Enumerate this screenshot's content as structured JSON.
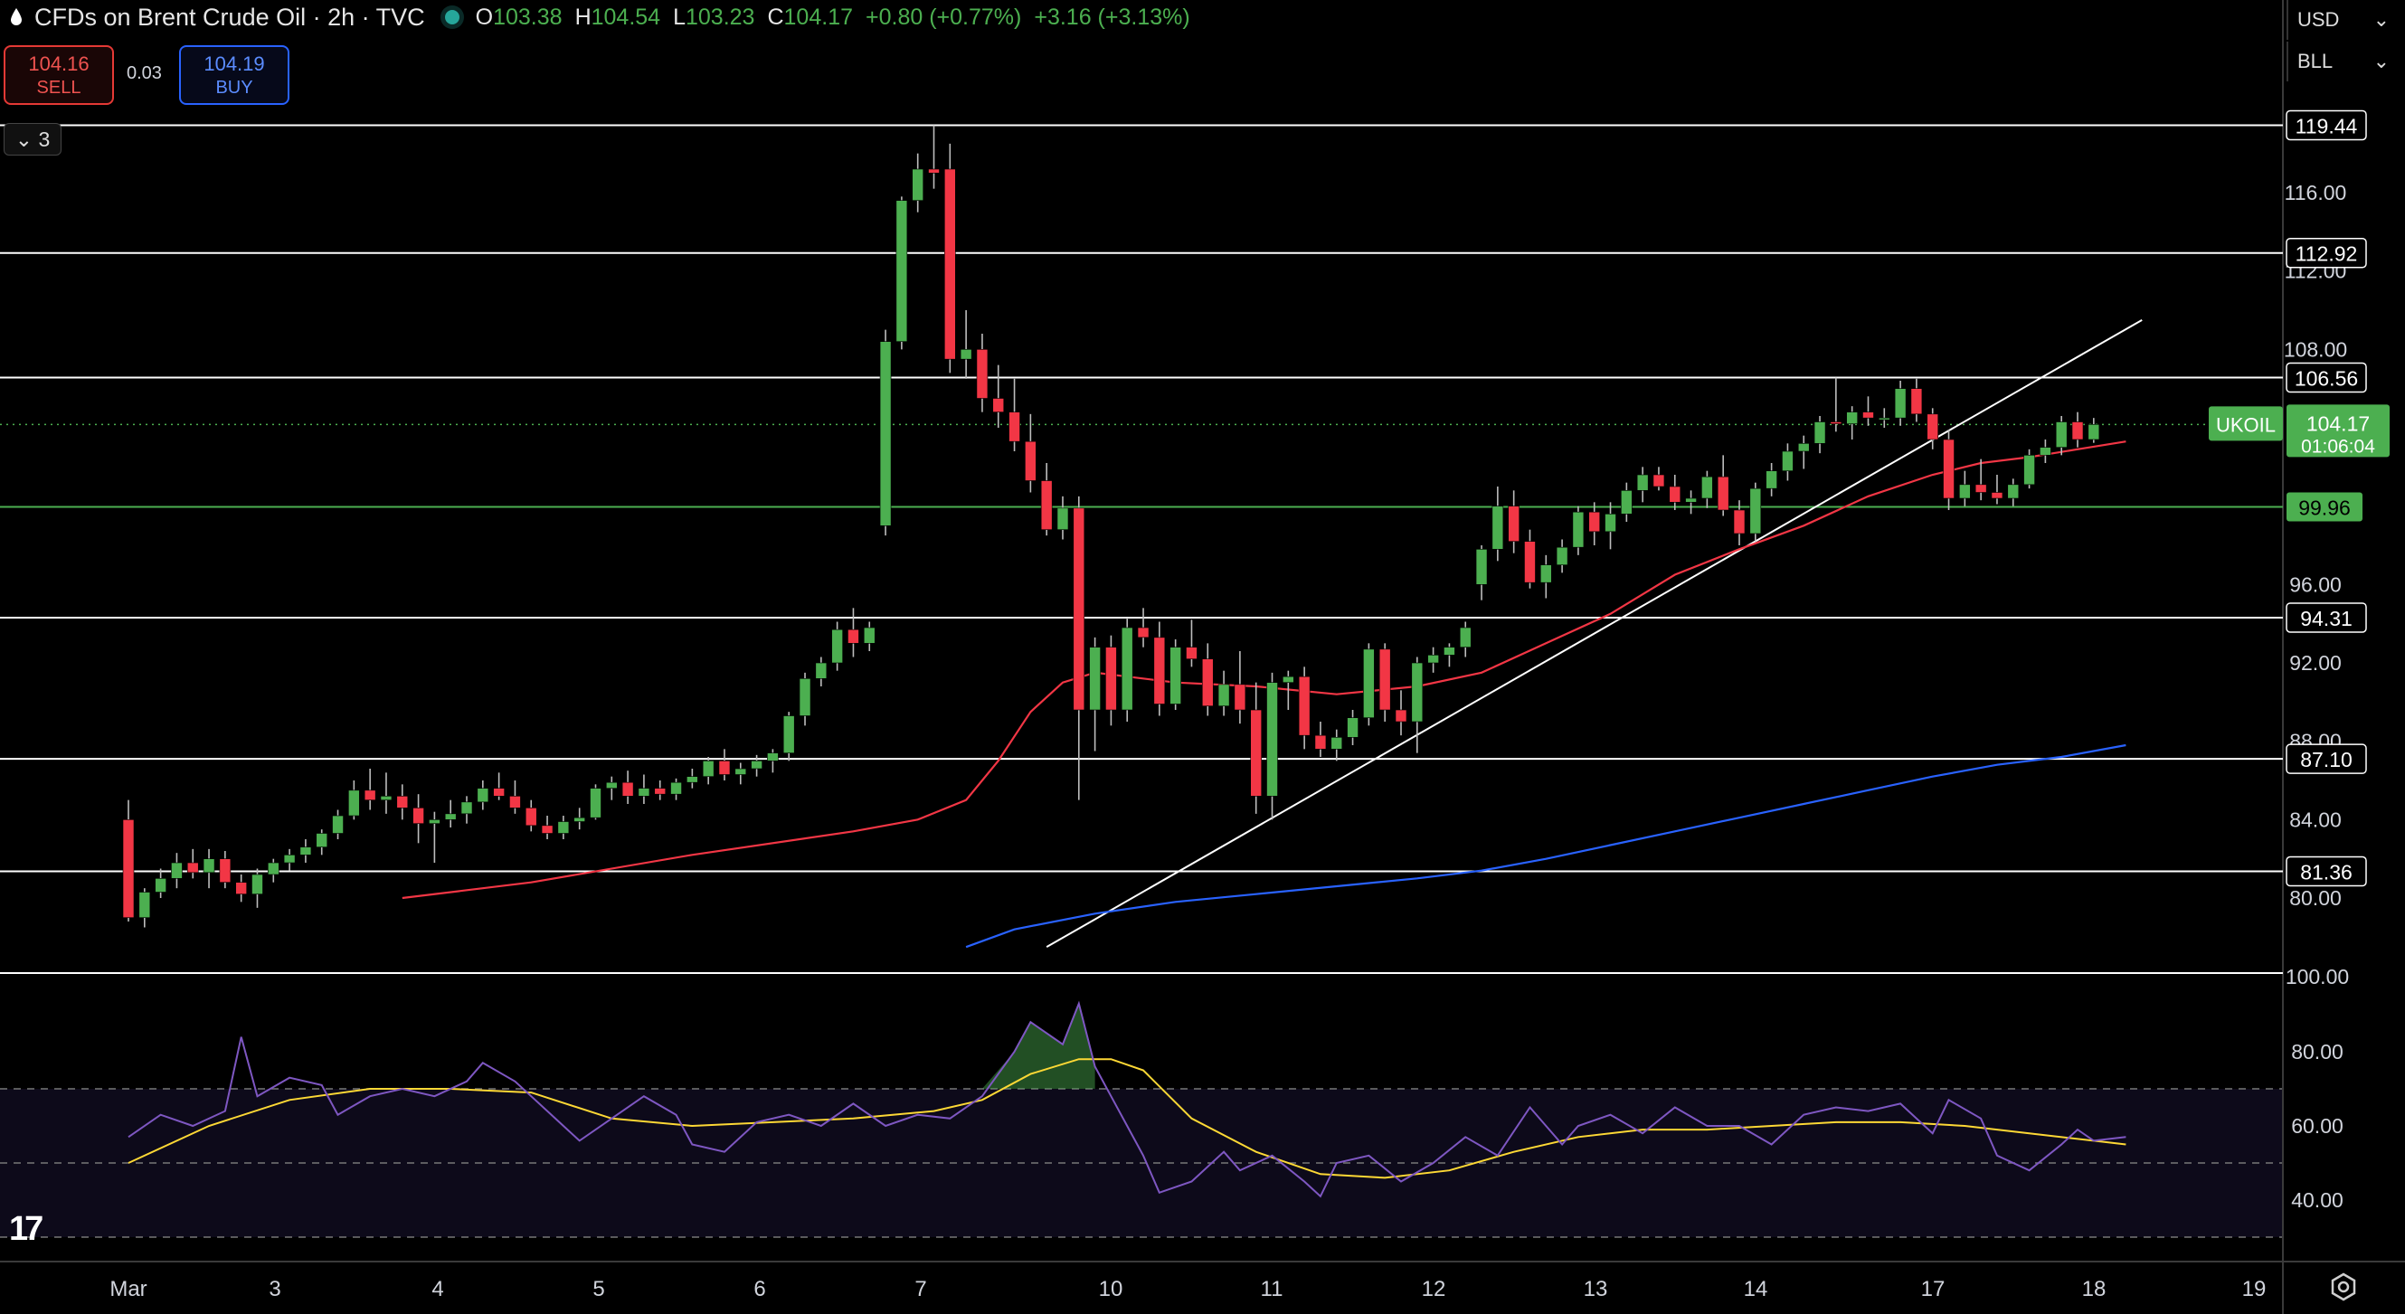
{
  "header": {
    "title": "CFDs on Brent Crude Oil · 2h · TVC",
    "open_label": "O",
    "open": "103.38",
    "high_label": "H",
    "high": "104.54",
    "low_label": "L",
    "low": "103.23",
    "close_label": "C",
    "close": "104.17",
    "change": "+0.80 (+0.77%)",
    "change2": "+3.16 (+3.13%)"
  },
  "trade": {
    "sell_price": "104.16",
    "sell_label": "SELL",
    "spread": "0.03",
    "buy_price": "104.19",
    "buy_label": "BUY"
  },
  "indicators_toggle": "3",
  "currency": "USD",
  "unit": "BLL",
  "symbol": {
    "name": "UKOIL",
    "price": "104.17",
    "countdown": "01:06:04"
  },
  "colors": {
    "up": "#4caf50",
    "down": "#f23645",
    "ma_fast": "#f23645",
    "ma_slow": "#2962ff",
    "rsi": "#7e57c2",
    "rsi_ma": "#fdd835",
    "level": "#ffffff",
    "accent": "#26a69a"
  },
  "chart_data": {
    "type": "candlestick",
    "price_ticks": [
      "116.00",
      "112.00",
      "108.00",
      "96.00",
      "92.00",
      "88.00",
      "84.00",
      "80.00"
    ],
    "price_ticks_values": [
      116,
      112,
      108,
      96,
      92,
      88,
      84,
      80
    ],
    "levels": [
      "119.44",
      "112.92",
      "106.56",
      "94.31",
      "87.10",
      "81.36"
    ],
    "levels_values": [
      119.44,
      112.92,
      106.56,
      94.31,
      87.1,
      81.36
    ],
    "support_line": "99.96",
    "support_line_value": 99.96,
    "last_price": 104.17,
    "x_labels": [
      "Mar",
      "3",
      "4",
      "5",
      "6",
      "7",
      "10",
      "11",
      "12",
      "13",
      "14",
      "17",
      "18",
      "19"
    ],
    "rsi_ticks": [
      "80.00",
      "60.00",
      "40.00"
    ],
    "rsi_ticks_values": [
      80,
      60,
      40
    ],
    "rsi_pane_top_label": "100.00",
    "rsi_bands": [
      70,
      50,
      30
    ],
    "candles": [
      [
        84.0,
        85.0,
        78.8,
        79.0
      ],
      [
        79.0,
        80.5,
        78.5,
        80.3
      ],
      [
        80.3,
        81.5,
        80.0,
        81.0
      ],
      [
        81.0,
        82.3,
        80.5,
        81.8
      ],
      [
        81.8,
        82.5,
        81.0,
        81.3
      ],
      [
        81.3,
        82.5,
        80.5,
        82.0
      ],
      [
        82.0,
        82.4,
        80.5,
        80.8
      ],
      [
        80.8,
        81.2,
        79.8,
        80.2
      ],
      [
        80.2,
        81.5,
        79.5,
        81.2
      ],
      [
        81.2,
        82.0,
        80.8,
        81.8
      ],
      [
        81.8,
        82.5,
        81.4,
        82.2
      ],
      [
        82.2,
        83.0,
        81.8,
        82.6
      ],
      [
        82.6,
        83.5,
        82.2,
        83.3
      ],
      [
        83.3,
        84.5,
        83.0,
        84.2
      ],
      [
        84.2,
        86.0,
        84.0,
        85.5
      ],
      [
        85.5,
        86.6,
        84.5,
        85.0
      ],
      [
        85.0,
        86.4,
        84.3,
        85.2
      ],
      [
        85.2,
        85.8,
        84.0,
        84.6
      ],
      [
        84.6,
        85.3,
        82.8,
        83.8
      ],
      [
        83.8,
        84.4,
        81.8,
        84.0
      ],
      [
        84.0,
        85.0,
        83.6,
        84.3
      ],
      [
        84.3,
        85.2,
        83.8,
        84.9
      ],
      [
        84.9,
        86.0,
        84.5,
        85.6
      ],
      [
        85.6,
        86.4,
        85.0,
        85.2
      ],
      [
        85.2,
        86.0,
        84.3,
        84.6
      ],
      [
        84.6,
        85.0,
        83.4,
        83.7
      ],
      [
        83.7,
        84.2,
        83.0,
        83.3
      ],
      [
        83.3,
        84.2,
        83.0,
        83.9
      ],
      [
        83.9,
        84.6,
        83.5,
        84.1
      ],
      [
        84.1,
        85.8,
        84.0,
        85.6
      ],
      [
        85.6,
        86.2,
        85.0,
        85.9
      ],
      [
        85.9,
        86.5,
        84.8,
        85.2
      ],
      [
        85.2,
        86.3,
        84.8,
        85.6
      ],
      [
        85.6,
        86.0,
        85.0,
        85.3
      ],
      [
        85.3,
        86.1,
        85.0,
        85.9
      ],
      [
        85.9,
        86.6,
        85.6,
        86.2
      ],
      [
        86.2,
        87.2,
        85.8,
        87.0
      ],
      [
        87.0,
        87.6,
        86.0,
        86.3
      ],
      [
        86.3,
        86.9,
        85.8,
        86.6
      ],
      [
        86.6,
        87.3,
        86.2,
        87.0
      ],
      [
        87.0,
        87.6,
        86.4,
        87.4
      ],
      [
        87.4,
        89.5,
        87.0,
        89.3
      ],
      [
        89.3,
        91.5,
        88.8,
        91.2
      ],
      [
        91.2,
        92.3,
        90.8,
        92.0
      ],
      [
        92.0,
        94.1,
        91.6,
        93.7
      ],
      [
        93.7,
        94.8,
        92.3,
        93.0
      ],
      [
        93.0,
        94.1,
        92.6,
        93.8
      ],
      [
        99.0,
        109.0,
        98.5,
        108.4
      ],
      [
        108.4,
        115.8,
        108.0,
        115.6
      ],
      [
        115.6,
        118.0,
        115.0,
        117.2
      ],
      [
        117.2,
        119.44,
        116.2,
        117.0
      ],
      [
        117.2,
        118.5,
        106.8,
        107.5
      ],
      [
        107.5,
        110.0,
        106.5,
        108.0
      ],
      [
        108.0,
        108.8,
        104.8,
        105.5
      ],
      [
        105.5,
        107.2,
        104.0,
        104.8
      ],
      [
        104.8,
        106.5,
        102.8,
        103.3
      ],
      [
        103.3,
        104.7,
        100.7,
        101.3
      ],
      [
        101.3,
        102.2,
        98.5,
        98.8
      ],
      [
        98.8,
        100.5,
        98.3,
        99.9
      ],
      [
        99.9,
        100.5,
        85.0,
        89.6
      ],
      [
        89.6,
        93.3,
        87.5,
        92.8
      ],
      [
        92.8,
        93.4,
        88.8,
        89.6
      ],
      [
        89.6,
        94.3,
        89.0,
        93.8
      ],
      [
        93.8,
        94.8,
        92.8,
        93.3
      ],
      [
        93.3,
        94.1,
        89.3,
        89.9
      ],
      [
        89.9,
        93.2,
        89.6,
        92.8
      ],
      [
        92.8,
        94.2,
        91.8,
        92.2
      ],
      [
        92.2,
        93.0,
        89.3,
        89.8
      ],
      [
        89.8,
        91.6,
        89.3,
        90.9
      ],
      [
        90.9,
        92.6,
        88.9,
        89.6
      ],
      [
        89.6,
        91.0,
        84.3,
        85.2
      ],
      [
        85.2,
        91.5,
        84.0,
        91.0
      ],
      [
        91.0,
        91.6,
        89.6,
        91.3
      ],
      [
        91.3,
        91.8,
        87.6,
        88.3
      ],
      [
        88.3,
        89.0,
        87.2,
        87.6
      ],
      [
        87.6,
        88.6,
        87.0,
        88.2
      ],
      [
        88.2,
        89.6,
        87.8,
        89.2
      ],
      [
        89.2,
        93.0,
        88.8,
        92.7
      ],
      [
        92.7,
        93.0,
        89.0,
        89.6
      ],
      [
        89.6,
        90.6,
        88.3,
        89.0
      ],
      [
        89.0,
        92.3,
        87.4,
        92.0
      ],
      [
        92.0,
        92.8,
        91.5,
        92.4
      ],
      [
        92.4,
        93.0,
        91.8,
        92.8
      ],
      [
        92.8,
        94.1,
        92.3,
        93.8
      ],
      [
        96.0,
        98.0,
        95.2,
        97.8
      ],
      [
        97.8,
        101.0,
        97.2,
        100.0
      ],
      [
        100.0,
        100.8,
        97.6,
        98.2
      ],
      [
        98.2,
        98.8,
        95.8,
        96.1
      ],
      [
        96.1,
        97.5,
        95.3,
        97.0
      ],
      [
        97.0,
        98.3,
        96.6,
        97.9
      ],
      [
        97.9,
        100.0,
        97.5,
        99.7
      ],
      [
        99.7,
        100.2,
        98.0,
        98.7
      ],
      [
        98.7,
        100.2,
        97.8,
        99.6
      ],
      [
        99.6,
        101.2,
        99.2,
        100.8
      ],
      [
        100.8,
        102.0,
        100.2,
        101.6
      ],
      [
        101.6,
        102.0,
        100.8,
        101.0
      ],
      [
        101.0,
        101.6,
        99.8,
        100.2
      ],
      [
        100.2,
        100.8,
        99.6,
        100.4
      ],
      [
        100.4,
        101.8,
        99.9,
        101.5
      ],
      [
        101.5,
        102.6,
        99.5,
        99.8
      ],
      [
        99.8,
        100.3,
        98.0,
        98.6
      ],
      [
        98.6,
        101.2,
        98.2,
        100.9
      ],
      [
        100.9,
        102.2,
        100.5,
        101.8
      ],
      [
        101.8,
        103.2,
        101.3,
        102.8
      ],
      [
        102.8,
        103.6,
        101.9,
        103.2
      ],
      [
        103.2,
        104.6,
        102.7,
        104.3
      ],
      [
        104.3,
        106.56,
        103.8,
        104.2
      ],
      [
        104.2,
        105.1,
        103.4,
        104.8
      ],
      [
        104.8,
        105.6,
        104.1,
        104.5
      ],
      [
        104.5,
        105.0,
        104.0,
        104.5
      ],
      [
        104.5,
        106.4,
        104.1,
        106.0
      ],
      [
        106.0,
        106.5,
        104.3,
        104.7
      ],
      [
        104.7,
        105.0,
        102.9,
        103.4
      ],
      [
        103.4,
        103.9,
        99.8,
        100.4
      ],
      [
        100.4,
        101.8,
        100.0,
        101.1
      ],
      [
        101.1,
        102.4,
        100.3,
        100.7
      ],
      [
        100.7,
        101.6,
        100.1,
        100.4
      ],
      [
        100.4,
        101.4,
        100.0,
        101.1
      ],
      [
        101.1,
        102.9,
        100.9,
        102.6
      ],
      [
        102.6,
        103.4,
        102.2,
        103.0
      ],
      [
        103.0,
        104.6,
        102.6,
        104.3
      ],
      [
        104.3,
        104.8,
        103.0,
        103.4
      ],
      [
        103.4,
        104.5,
        103.23,
        104.17
      ]
    ],
    "ma_fast": [
      [
        17,
        80.0
      ],
      [
        25,
        80.8
      ],
      [
        35,
        82.2
      ],
      [
        45,
        83.4
      ],
      [
        49,
        84.0
      ],
      [
        52,
        85.0
      ],
      [
        54,
        87.0
      ],
      [
        56,
        89.5
      ],
      [
        58,
        91.0
      ],
      [
        60,
        91.5
      ],
      [
        65,
        91.0
      ],
      [
        70,
        90.8
      ],
      [
        75,
        90.4
      ],
      [
        80,
        90.8
      ],
      [
        84,
        91.5
      ],
      [
        88,
        93.0
      ],
      [
        92,
        94.5
      ],
      [
        96,
        96.5
      ],
      [
        100,
        97.8
      ],
      [
        104,
        99.0
      ],
      [
        108,
        100.5
      ],
      [
        112,
        101.6
      ],
      [
        115,
        102.2
      ],
      [
        118,
        102.5
      ],
      [
        121,
        102.9
      ],
      [
        124,
        103.3
      ]
    ],
    "ma_slow": [
      [
        52,
        77.5
      ],
      [
        55,
        78.4
      ],
      [
        60,
        79.2
      ],
      [
        65,
        79.8
      ],
      [
        70,
        80.2
      ],
      [
        75,
        80.6
      ],
      [
        80,
        81.0
      ],
      [
        84,
        81.4
      ],
      [
        88,
        82.0
      ],
      [
        92,
        82.7
      ],
      [
        96,
        83.4
      ],
      [
        100,
        84.1
      ],
      [
        104,
        84.8
      ],
      [
        108,
        85.5
      ],
      [
        112,
        86.2
      ],
      [
        116,
        86.8
      ],
      [
        120,
        87.2
      ],
      [
        124,
        87.8
      ]
    ],
    "trendline": [
      [
        57,
        77.5
      ],
      [
        125,
        109.5
      ]
    ],
    "rsi": [
      [
        0,
        57
      ],
      [
        2,
        63
      ],
      [
        4,
        60
      ],
      [
        6,
        64
      ],
      [
        7,
        84
      ],
      [
        8,
        68
      ],
      [
        10,
        73
      ],
      [
        12,
        71
      ],
      [
        13,
        63
      ],
      [
        15,
        68
      ],
      [
        17,
        70
      ],
      [
        19,
        68
      ],
      [
        21,
        72
      ],
      [
        22,
        77
      ],
      [
        24,
        72
      ],
      [
        25,
        68
      ],
      [
        27,
        60
      ],
      [
        28,
        56
      ],
      [
        30,
        62
      ],
      [
        32,
        68
      ],
      [
        34,
        63
      ],
      [
        35,
        55
      ],
      [
        37,
        53
      ],
      [
        39,
        61
      ],
      [
        41,
        63
      ],
      [
        43,
        60
      ],
      [
        45,
        66
      ],
      [
        47,
        60
      ],
      [
        49,
        63
      ],
      [
        51,
        62
      ],
      [
        53,
        68
      ],
      [
        55,
        80
      ],
      [
        56,
        88
      ],
      [
        58,
        82
      ],
      [
        59,
        93
      ],
      [
        60,
        76
      ],
      [
        61,
        68
      ],
      [
        62,
        60
      ],
      [
        63,
        52
      ],
      [
        64,
        42
      ],
      [
        66,
        45
      ],
      [
        68,
        53
      ],
      [
        69,
        48
      ],
      [
        71,
        52
      ],
      [
        73,
        45
      ],
      [
        74,
        41
      ],
      [
        75,
        50
      ],
      [
        77,
        52
      ],
      [
        79,
        45
      ],
      [
        81,
        50
      ],
      [
        83,
        57
      ],
      [
        85,
        52
      ],
      [
        87,
        65
      ],
      [
        88,
        60
      ],
      [
        89,
        55
      ],
      [
        90,
        60
      ],
      [
        92,
        63
      ],
      [
        94,
        58
      ],
      [
        96,
        65
      ],
      [
        98,
        60
      ],
      [
        100,
        60
      ],
      [
        102,
        55
      ],
      [
        104,
        63
      ],
      [
        106,
        65
      ],
      [
        108,
        64
      ],
      [
        110,
        66
      ],
      [
        112,
        58
      ],
      [
        113,
        67
      ],
      [
        115,
        62
      ],
      [
        116,
        52
      ],
      [
        118,
        48
      ],
      [
        120,
        55
      ],
      [
        121,
        59
      ],
      [
        122,
        56
      ],
      [
        124,
        57
      ]
    ],
    "rsi_ma": [
      [
        0,
        50
      ],
      [
        5,
        60
      ],
      [
        10,
        67
      ],
      [
        15,
        70
      ],
      [
        20,
        70
      ],
      [
        25,
        69
      ],
      [
        30,
        62
      ],
      [
        35,
        60
      ],
      [
        40,
        61
      ],
      [
        45,
        62
      ],
      [
        50,
        64
      ],
      [
        53,
        67
      ],
      [
        56,
        74
      ],
      [
        59,
        78
      ],
      [
        61,
        78
      ],
      [
        63,
        75
      ],
      [
        66,
        62
      ],
      [
        70,
        53
      ],
      [
        74,
        47
      ],
      [
        78,
        46
      ],
      [
        82,
        48
      ],
      [
        86,
        53
      ],
      [
        90,
        57
      ],
      [
        94,
        59
      ],
      [
        98,
        59
      ],
      [
        102,
        60
      ],
      [
        106,
        61
      ],
      [
        110,
        61
      ],
      [
        114,
        60
      ],
      [
        118,
        58
      ],
      [
        122,
        56
      ],
      [
        124,
        55
      ]
    ]
  }
}
